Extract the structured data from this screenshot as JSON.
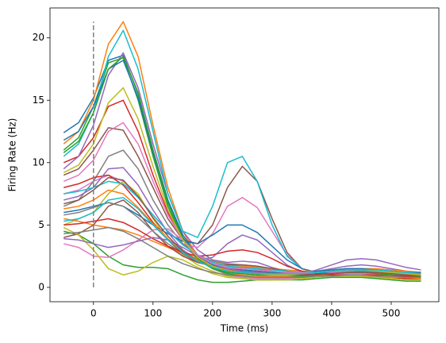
{
  "chart_data": {
    "type": "line",
    "xlabel": "Time (ms)",
    "ylabel": "Firing Rate (Hz)",
    "x": [
      -50,
      -25,
      0,
      25,
      50,
      75,
      100,
      125,
      150,
      175,
      200,
      225,
      250,
      275,
      300,
      325,
      350,
      375,
      400,
      425,
      450,
      475,
      500,
      525,
      550
    ],
    "xlim": [
      -73,
      580
    ],
    "ylim": [
      -1.15,
      22.4
    ],
    "xticks": [
      0,
      100,
      200,
      300,
      400,
      500
    ],
    "yticks": [
      0,
      5,
      10,
      15,
      20
    ],
    "grid": false,
    "vline": {
      "x": 0,
      "ymin": 0,
      "ymax": 21.3,
      "color": "#808080",
      "dashed": true
    },
    "series": [
      {
        "color": "#1f77b4",
        "values": [
          12.4,
          13.2,
          15.2,
          18.2,
          18.6,
          15.5,
          11,
          7,
          4.2,
          2.6,
          1.8,
          1.4,
          1.3,
          1.2,
          1.1,
          1.0,
          1.0,
          1.1,
          1.2,
          1.3,
          1.4,
          1.4,
          1.3,
          1.2,
          1.2
        ]
      },
      {
        "color": "#ff7f0e",
        "values": [
          11.5,
          12.5,
          15,
          19.5,
          21.3,
          18.5,
          13,
          8,
          4.5,
          2.5,
          1.6,
          1.2,
          1.0,
          0.9,
          0.9,
          0.9,
          1.0,
          1.1,
          1.2,
          1.3,
          1.3,
          1.3,
          1.2,
          1.1,
          1.0
        ]
      },
      {
        "color": "#2ca02c",
        "values": [
          11,
          12,
          14.5,
          18,
          18.4,
          15,
          10.5,
          6.5,
          3.8,
          2.2,
          1.5,
          1.2,
          1.1,
          1.0,
          1.0,
          1.1,
          1.2,
          1.3,
          1.4,
          1.5,
          1.5,
          1.4,
          1.3,
          1.2,
          1.1
        ]
      },
      {
        "color": "#d62728",
        "values": [
          10,
          10.5,
          12,
          14.5,
          15,
          12.5,
          9,
          6,
          3.8,
          2.4,
          1.8,
          1.5,
          1.3,
          1.2,
          1.1,
          1.1,
          1.2,
          1.3,
          1.3,
          1.4,
          1.4,
          1.3,
          1.2,
          1.1,
          1.0
        ]
      },
      {
        "color": "#9467bd",
        "values": [
          9.5,
          10.5,
          13,
          17,
          18.8,
          16,
          11.5,
          7.5,
          4.5,
          3,
          2.2,
          2,
          2.1,
          2,
          1.6,
          1.3,
          1.2,
          1.3,
          1.5,
          1.7,
          1.8,
          1.7,
          1.5,
          1.3,
          1.2
        ]
      },
      {
        "color": "#8c564b",
        "values": [
          9,
          9.5,
          11,
          12.8,
          12.6,
          10.5,
          8,
          5.5,
          3.8,
          3.5,
          5,
          8,
          9.7,
          8.5,
          5.5,
          2.8,
          1.5,
          1.2,
          1.2,
          1.3,
          1.4,
          1.4,
          1.3,
          1.2,
          1.1
        ]
      },
      {
        "color": "#e377c2",
        "values": [
          7.5,
          7.8,
          8.5,
          9,
          8.5,
          7.2,
          5.8,
          4.5,
          3.5,
          3.2,
          4.3,
          6.5,
          7.2,
          6.4,
          4.5,
          2.6,
          1.5,
          1.2,
          1.2,
          1.3,
          1.4,
          1.4,
          1.3,
          1.2,
          1.2
        ]
      },
      {
        "color": "#7f7f7f",
        "values": [
          6.5,
          7,
          8.5,
          10.5,
          11,
          9.5,
          7,
          5,
          3.5,
          2.6,
          2.1,
          1.9,
          1.8,
          1.7,
          1.5,
          1.3,
          1.1,
          1.0,
          1.0,
          1.1,
          1.2,
          1.2,
          1.1,
          1.0,
          1.0
        ]
      },
      {
        "color": "#bcbd22",
        "values": [
          5,
          5.5,
          6,
          7.5,
          8.5,
          7.5,
          5.5,
          3.8,
          2.6,
          1.8,
          1.3,
          0.9,
          0.7,
          0.6,
          0.6,
          0.7,
          0.8,
          0.9,
          1.0,
          1.0,
          1.0,
          0.9,
          0.8,
          0.7,
          0.6
        ]
      },
      {
        "color": "#17becf",
        "values": [
          10.5,
          11.5,
          14,
          18.5,
          20.6,
          17.5,
          12.5,
          7.5,
          4.5,
          4,
          6.5,
          10,
          10.5,
          8.5,
          5,
          2.5,
          1.5,
          1.2,
          1.1,
          1.2,
          1.3,
          1.3,
          1.2,
          1.1,
          1.0
        ]
      },
      {
        "color": "#1f77b4",
        "values": [
          6,
          6.2,
          6.5,
          6.8,
          6.5,
          5.8,
          5,
          4.3,
          3.7,
          3.5,
          4.2,
          5,
          5,
          4.4,
          3.3,
          2.2,
          1.5,
          1.2,
          1.1,
          1.1,
          1.2,
          1.2,
          1.1,
          1.0,
          1.0
        ]
      },
      {
        "color": "#ff7f0e",
        "values": [
          5.5,
          5.3,
          5,
          4.8,
          4.6,
          4.2,
          3.7,
          3.2,
          2.7,
          2.3,
          2.0,
          1.8,
          1.7,
          1.6,
          1.5,
          1.4,
          1.3,
          1.3,
          1.4,
          1.5,
          1.5,
          1.5,
          1.4,
          1.3,
          1.2
        ]
      },
      {
        "color": "#2ca02c",
        "values": [
          4.5,
          4.2,
          3.5,
          2.5,
          1.8,
          1.6,
          1.6,
          1.5,
          1.0,
          0.6,
          0.4,
          0.4,
          0.5,
          0.6,
          0.6,
          0.6,
          0.6,
          0.7,
          0.8,
          0.8,
          0.8,
          0.7,
          0.6,
          0.5,
          0.5
        ]
      },
      {
        "color": "#d62728",
        "values": [
          8,
          8.3,
          8.8,
          9,
          8.2,
          6.8,
          5.2,
          3.8,
          2.7,
          2,
          1.7,
          1.6,
          1.6,
          1.5,
          1.3,
          1.1,
          1.0,
          0.9,
          0.9,
          0.9,
          0.9,
          0.8,
          0.8,
          0.7,
          0.7
        ]
      },
      {
        "color": "#9467bd",
        "values": [
          7,
          7.3,
          8,
          9.5,
          9.6,
          8.2,
          6.2,
          4.4,
          3.0,
          2.2,
          2.4,
          3.5,
          4.2,
          3.8,
          2.8,
          1.8,
          1.2,
          1.0,
          1.0,
          1.1,
          1.2,
          1.2,
          1.1,
          1.0,
          1.0
        ]
      },
      {
        "color": "#8c564b",
        "values": [
          4,
          4.3,
          5,
          6.5,
          7,
          6,
          4.5,
          3.3,
          2.5,
          2.0,
          1.8,
          1.8,
          1.8,
          1.7,
          1.5,
          1.3,
          1.1,
          1.0,
          1.0,
          1.0,
          1.0,
          0.9,
          0.9,
          0.8,
          0.8
        ]
      },
      {
        "color": "#e377c2",
        "values": [
          3.5,
          3.2,
          2.5,
          2.4,
          3,
          3.8,
          4.6,
          4.7,
          3.8,
          2.5,
          1.5,
          1,
          0.8,
          0.7,
          0.7,
          0.7,
          0.8,
          0.9,
          1.0,
          1.1,
          1.1,
          1.0,
          0.9,
          0.8,
          0.8
        ]
      },
      {
        "color": "#7f7f7f",
        "values": [
          5.8,
          6,
          6.4,
          6.8,
          6.5,
          5.6,
          4.5,
          3.5,
          2.7,
          2.1,
          1.7,
          1.5,
          1.4,
          1.3,
          1.2,
          1.1,
          1.0,
          1.0,
          1.1,
          1.2,
          1.3,
          1.3,
          1.2,
          1.1,
          1.1
        ]
      },
      {
        "color": "#bcbd22",
        "values": [
          4.8,
          4.2,
          3,
          1.5,
          1,
          1.3,
          2,
          2.5,
          2.2,
          1.6,
          1.1,
          0.8,
          0.7,
          0.6,
          0.6,
          0.6,
          0.7,
          0.8,
          0.9,
          0.9,
          0.9,
          0.8,
          0.7,
          0.6,
          0.6
        ]
      },
      {
        "color": "#17becf",
        "values": [
          7.5,
          7.7,
          8,
          8.5,
          8.3,
          7.2,
          5.8,
          4.5,
          3.4,
          2.6,
          2,
          1.7,
          1.6,
          1.5,
          1.4,
          1.3,
          1.2,
          1.2,
          1.3,
          1.4,
          1.4,
          1.4,
          1.3,
          1.2,
          1.2
        ]
      },
      {
        "color": "#1f77b4",
        "values": [
          11.8,
          12.5,
          14.5,
          17.5,
          18.2,
          15.2,
          10.8,
          6.8,
          4,
          2.5,
          1.8,
          1.5,
          1.4,
          1.3,
          1.2,
          1.2,
          1.2,
          1.3,
          1.4,
          1.5,
          1.5,
          1.4,
          1.3,
          1.2,
          1.2
        ]
      },
      {
        "color": "#ff7f0e",
        "values": [
          6.3,
          6.5,
          7,
          7.8,
          7.5,
          6.4,
          5.1,
          3.9,
          2.9,
          2.2,
          1.7,
          1.4,
          1.2,
          1.1,
          1.0,
          0.9,
          0.9,
          0.9,
          1.0,
          1.0,
          1.0,
          0.9,
          0.8,
          0.8,
          0.7
        ]
      },
      {
        "color": "#2ca02c",
        "values": [
          10.8,
          11.7,
          14,
          17.5,
          18.5,
          15.6,
          11,
          6.8,
          3.9,
          2.3,
          1.5,
          1.1,
          0.9,
          0.8,
          0.8,
          0.8,
          0.9,
          1.0,
          1.1,
          1.2,
          1.2,
          1.1,
          1.0,
          0.9,
          0.9
        ]
      },
      {
        "color": "#d62728",
        "values": [
          5,
          5.1,
          5.3,
          5.5,
          5.2,
          4.6,
          3.9,
          3.3,
          2.8,
          2.5,
          2.6,
          2.9,
          3,
          2.8,
          2.3,
          1.7,
          1.3,
          1.1,
          1.0,
          1.0,
          1.0,
          1.0,
          0.9,
          0.9,
          0.8
        ]
      },
      {
        "color": "#9467bd",
        "values": [
          3.9,
          3.8,
          3.5,
          3.2,
          3.4,
          3.7,
          4,
          3.8,
          3.2,
          2.5,
          1.9,
          1.5,
          1.3,
          1.2,
          1.1,
          1.0,
          1.1,
          1.4,
          1.8,
          2.2,
          2.3,
          2.2,
          1.9,
          1.6,
          1.4
        ]
      },
      {
        "color": "#8c564b",
        "values": [
          6.7,
          7,
          7.8,
          8.8,
          8.6,
          7.3,
          5.6,
          4.1,
          2.9,
          2.1,
          1.6,
          1.3,
          1.2,
          1.1,
          1.0,
          1.0,
          1.0,
          1.0,
          1.1,
          1.2,
          1.2,
          1.2,
          1.1,
          1.0,
          1.0
        ]
      },
      {
        "color": "#e377c2",
        "values": [
          8.5,
          9,
          10.2,
          12.5,
          13.2,
          11.5,
          8.5,
          5.8,
          3.8,
          2.6,
          1.9,
          1.6,
          1.5,
          1.4,
          1.3,
          1.2,
          1.2,
          1.2,
          1.3,
          1.4,
          1.4,
          1.4,
          1.3,
          1.2,
          1.1
        ]
      },
      {
        "color": "#7f7f7f",
        "values": [
          4.3,
          4.4,
          4.6,
          4.8,
          4.5,
          3.9,
          3.2,
          2.5,
          1.9,
          1.5,
          1.2,
          1,
          0.9,
          0.8,
          0.8,
          0.8,
          0.8,
          0.9,
          0.9,
          1.0,
          1.0,
          0.9,
          0.9,
          0.8,
          0.8
        ]
      },
      {
        "color": "#bcbd22",
        "values": [
          9.2,
          9.8,
          11.5,
          14.8,
          16,
          13.5,
          9.7,
          6.2,
          3.8,
          2.4,
          1.7,
          1.3,
          1.2,
          1.1,
          1.0,
          1.0,
          1.1,
          1.2,
          1.3,
          1.4,
          1.4,
          1.3,
          1.2,
          1.1,
          1.0
        ]
      },
      {
        "color": "#17becf",
        "values": [
          5.3,
          5.5,
          6,
          7,
          7.2,
          6.3,
          5,
          3.8,
          2.8,
          2.1,
          1.6,
          1.3,
          1.2,
          1.1,
          1.1,
          1.1,
          1.1,
          1.2,
          1.3,
          1.4,
          1.4,
          1.4,
          1.3,
          1.2,
          1.1
        ]
      }
    ]
  }
}
